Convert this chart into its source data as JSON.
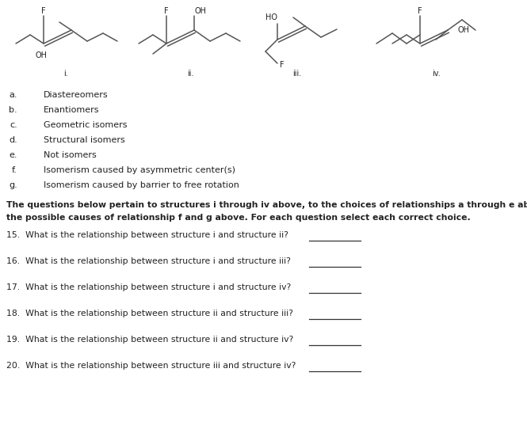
{
  "bg_color": "#ffffff",
  "fig_width": 6.65,
  "fig_height": 5.52,
  "dpi": 100,
  "choices": [
    [
      "a.",
      "Diastereomers"
    ],
    [
      "b.",
      "Enantiomers"
    ],
    [
      "c.",
      "Geometric isomers"
    ],
    [
      "d.",
      "Structural isomers"
    ],
    [
      "e.",
      "Not isomers"
    ],
    [
      "f.",
      "Isomerism caused by asymmetric center(s)"
    ],
    [
      "g.",
      "Isomerism caused by barrier to free rotation"
    ]
  ],
  "questions": [
    [
      "15.",
      "What is the relationship between structure ",
      "i",
      " and structure ",
      "ii",
      "?"
    ],
    [
      "16.",
      "What is the relationship between structure ",
      "i",
      " and structure ",
      "iii",
      "?"
    ],
    [
      "17.",
      "What is the relationship between structure ",
      "i",
      " and structure ",
      "iv",
      "?"
    ],
    [
      "18.",
      "What is the relationship between structure ",
      "ii",
      " and structure ",
      "iii",
      "?"
    ],
    [
      "19.",
      "What is the relationship between structure ",
      "ii",
      " and structure ",
      "iv",
      "?"
    ],
    [
      "20.",
      "What is the relationship between structure ",
      "iii",
      " and structure ",
      "iv",
      "?"
    ]
  ],
  "line_color": "#333333",
  "text_color": "#222222",
  "mol_color": "#555555"
}
